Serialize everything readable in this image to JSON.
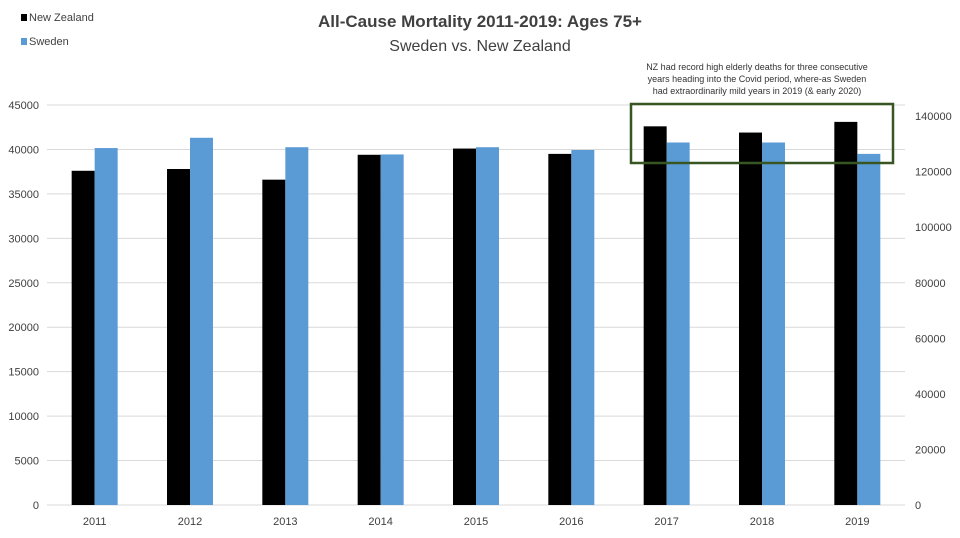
{
  "chart_data": {
    "type": "bar",
    "title": "All-Cause Mortality 2011-2019: Ages 75+",
    "subtitle": "Sweden vs. New Zealand",
    "categories": [
      "2011",
      "2012",
      "2013",
      "2014",
      "2015",
      "2016",
      "2017",
      "2018",
      "2019"
    ],
    "series": [
      {
        "name": "New Zealand",
        "axis": "left",
        "color": "#000000",
        "values": [
          37600,
          37800,
          36600,
          39400,
          40100,
          39500,
          42600,
          41900,
          43100
        ]
      },
      {
        "name": "Sweden",
        "axis": "right",
        "color": "#5b9bd5",
        "values": [
          128500,
          132200,
          128800,
          126200,
          128800,
          127800,
          130500,
          130500,
          126400
        ]
      }
    ],
    "y_left": {
      "min": 0,
      "max": 45000,
      "step": 5000,
      "tick_labels": [
        "0",
        "5000",
        "10000",
        "15000",
        "20000",
        "25000",
        "30000",
        "35000",
        "40000",
        "45000"
      ]
    },
    "y_right": {
      "min": 0,
      "max": 144000,
      "step": 20000,
      "tick_labels": [
        "0",
        "20000",
        "40000",
        "60000",
        "80000",
        "100000",
        "120000",
        "140000"
      ]
    },
    "grid": "horizontal",
    "legend_position": "top-left",
    "annotation": {
      "lines": [
        "NZ had record high elderly deaths for three consecutive",
        "years heading into the Covid period, where-as Sweden",
        "had extraordinarily mild years in 2019 (& early 2020)"
      ],
      "highlight_from": "2017",
      "highlight_to": "2019",
      "box_color": "#375623"
    }
  }
}
